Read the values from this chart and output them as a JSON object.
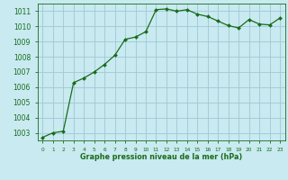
{
  "x": [
    0,
    1,
    2,
    3,
    4,
    5,
    6,
    7,
    8,
    9,
    10,
    11,
    12,
    13,
    14,
    15,
    16,
    17,
    18,
    19,
    20,
    21,
    22,
    23
  ],
  "y": [
    1002.7,
    1003.0,
    1003.1,
    1006.3,
    1006.6,
    1007.0,
    1007.5,
    1008.1,
    1009.15,
    1009.3,
    1009.65,
    1011.1,
    1011.15,
    1011.0,
    1011.1,
    1010.8,
    1010.65,
    1010.35,
    1010.05,
    1009.9,
    1010.45,
    1010.15,
    1010.1,
    1010.55
  ],
  "line_color": "#1a6b1a",
  "marker_color": "#1a6b1a",
  "bg_color": "#c8eaf0",
  "grid_color": "#a0c8d8",
  "xlabel": "Graphe pression niveau de la mer (hPa)",
  "xlabel_color": "#1a6b1a",
  "tick_color": "#1a6b1a",
  "ylim_min": 1002.5,
  "ylim_max": 1011.5,
  "yticks": [
    1003,
    1004,
    1005,
    1006,
    1007,
    1008,
    1009,
    1010,
    1011
  ],
  "xtick_labels": [
    "0",
    "1",
    "2",
    "3",
    "4",
    "5",
    "6",
    "7",
    "8",
    "9",
    "10",
    "11",
    "12",
    "13",
    "14",
    "15",
    "16",
    "17",
    "18",
    "19",
    "20",
    "21",
    "22",
    "23"
  ]
}
